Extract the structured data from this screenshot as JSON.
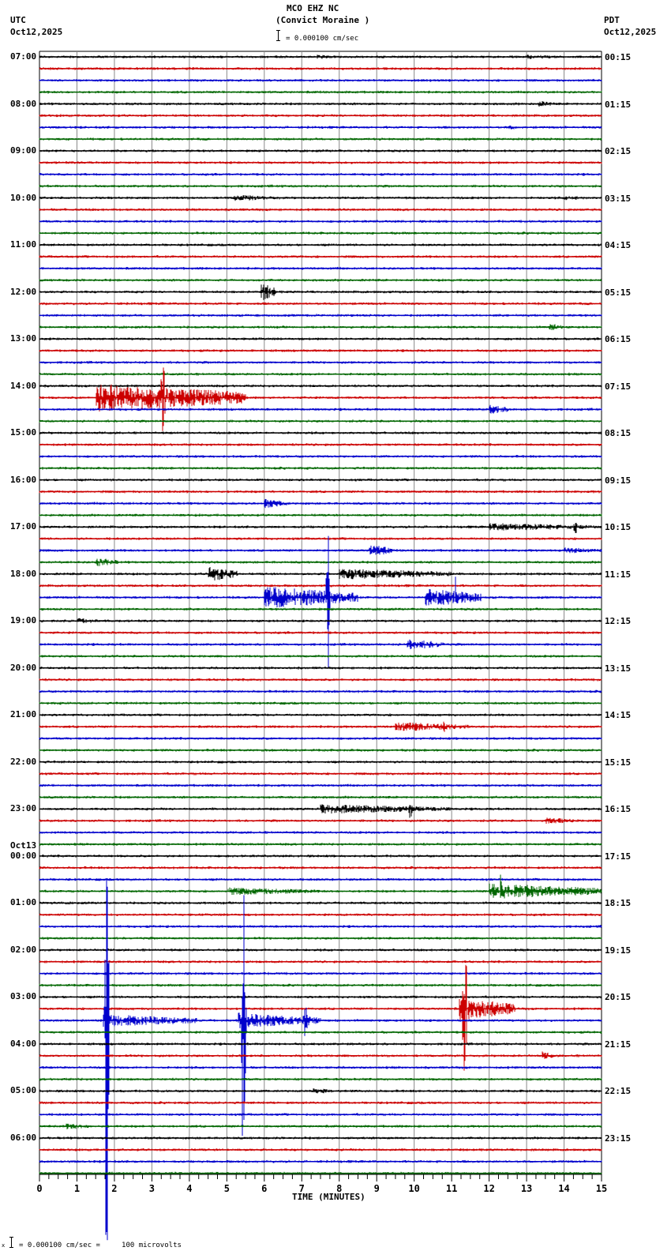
{
  "header": {
    "station": "MCO EHZ NC",
    "location": "(Convict Moraine )",
    "left_tz": "UTC",
    "left_date": "Oct12,2025",
    "right_tz": "PDT",
    "right_date": "Oct12,2025",
    "scale": "= 0.000100 cm/sec"
  },
  "footer": {
    "scale_note": "= 0.000100 cm/sec =     100 microvolts",
    "prefix": "x"
  },
  "chart_data": {
    "type": "line",
    "title": "MCO EHZ NC (Convict Moraine ) helicorder",
    "xlabel": "TIME (MINUTES)",
    "ylabel": "",
    "xlim": [
      0,
      15
    ],
    "x_ticks": [
      "0",
      "1",
      "2",
      "3",
      "4",
      "5",
      "6",
      "7",
      "8",
      "9",
      "10",
      "11",
      "12",
      "13",
      "14",
      "15"
    ],
    "traces_per_hour": 4,
    "trace_minutes": 15,
    "trace_colors": [
      "#000000",
      "#cc0000",
      "#0000cc",
      "#006600"
    ],
    "grid": true,
    "left_labels": [
      {
        "row": 0,
        "text": "07:00"
      },
      {
        "row": 4,
        "text": "08:00"
      },
      {
        "row": 8,
        "text": "09:00"
      },
      {
        "row": 12,
        "text": "10:00"
      },
      {
        "row": 16,
        "text": "11:00"
      },
      {
        "row": 20,
        "text": "12:00"
      },
      {
        "row": 24,
        "text": "13:00"
      },
      {
        "row": 28,
        "text": "14:00"
      },
      {
        "row": 32,
        "text": "15:00"
      },
      {
        "row": 36,
        "text": "16:00"
      },
      {
        "row": 40,
        "text": "17:00"
      },
      {
        "row": 44,
        "text": "18:00"
      },
      {
        "row": 48,
        "text": "19:00"
      },
      {
        "row": 52,
        "text": "20:00"
      },
      {
        "row": 56,
        "text": "21:00"
      },
      {
        "row": 60,
        "text": "22:00"
      },
      {
        "row": 64,
        "text": "23:00"
      },
      {
        "row": 68,
        "text": "00:00",
        "date": "Oct13"
      },
      {
        "row": 72,
        "text": "01:00"
      },
      {
        "row": 76,
        "text": "02:00"
      },
      {
        "row": 80,
        "text": "03:00"
      },
      {
        "row": 84,
        "text": "04:00"
      },
      {
        "row": 88,
        "text": "05:00"
      },
      {
        "row": 92,
        "text": "06:00"
      }
    ],
    "right_labels": [
      {
        "row": 0,
        "text": "00:15"
      },
      {
        "row": 4,
        "text": "01:15"
      },
      {
        "row": 8,
        "text": "02:15"
      },
      {
        "row": 12,
        "text": "03:15"
      },
      {
        "row": 16,
        "text": "04:15"
      },
      {
        "row": 20,
        "text": "05:15"
      },
      {
        "row": 24,
        "text": "06:15"
      },
      {
        "row": 28,
        "text": "07:15"
      },
      {
        "row": 32,
        "text": "08:15"
      },
      {
        "row": 36,
        "text": "09:15"
      },
      {
        "row": 40,
        "text": "10:15"
      },
      {
        "row": 44,
        "text": "11:15"
      },
      {
        "row": 48,
        "text": "12:15"
      },
      {
        "row": 52,
        "text": "13:15"
      },
      {
        "row": 56,
        "text": "14:15"
      },
      {
        "row": 60,
        "text": "15:15"
      },
      {
        "row": 64,
        "text": "16:15"
      },
      {
        "row": 68,
        "text": "17:15"
      },
      {
        "row": 72,
        "text": "18:15"
      },
      {
        "row": 76,
        "text": "19:15"
      },
      {
        "row": 80,
        "text": "20:15"
      },
      {
        "row": 84,
        "text": "21:15"
      },
      {
        "row": 88,
        "text": "22:15"
      },
      {
        "row": 92,
        "text": "23:15"
      }
    ],
    "events": [
      {
        "row": 0,
        "minute": 7.4,
        "dur": 0.6,
        "amp": 3
      },
      {
        "row": 0,
        "minute": 13.0,
        "dur": 1.0,
        "amp": 3
      },
      {
        "row": 4,
        "minute": 13.3,
        "dur": 0.5,
        "amp": 4
      },
      {
        "row": 6,
        "minute": 12.5,
        "dur": 0.5,
        "amp": 3
      },
      {
        "row": 12,
        "minute": 5.2,
        "dur": 1.2,
        "amp": 4
      },
      {
        "row": 12,
        "minute": 14.0,
        "dur": 0.8,
        "amp": 3
      },
      {
        "row": 20,
        "minute": 5.9,
        "dur": 0.4,
        "amp": 12
      },
      {
        "row": 23,
        "minute": 13.6,
        "dur": 0.4,
        "amp": 5
      },
      {
        "row": 29,
        "minute": 1.5,
        "dur": 4.0,
        "amp": 18,
        "peak": 3.3,
        "peakamp": 110
      },
      {
        "row": 30,
        "minute": 12.0,
        "dur": 0.6,
        "amp": 6
      },
      {
        "row": 38,
        "minute": 6.0,
        "dur": 0.6,
        "amp": 6
      },
      {
        "row": 40,
        "minute": 12.0,
        "dur": 3.0,
        "amp": 5,
        "peak": 14.3,
        "peakamp": 14
      },
      {
        "row": 42,
        "minute": 8.8,
        "dur": 0.6,
        "amp": 8
      },
      {
        "row": 42,
        "minute": 14.0,
        "dur": 1.0,
        "amp": 4
      },
      {
        "row": 43,
        "minute": 1.5,
        "dur": 0.6,
        "amp": 6
      },
      {
        "row": 44,
        "minute": 4.5,
        "dur": 0.8,
        "amp": 10
      },
      {
        "row": 44,
        "minute": 8.0,
        "dur": 3.0,
        "amp": 7
      },
      {
        "row": 46,
        "minute": 6.0,
        "dur": 2.5,
        "amp": 14,
        "peak": 7.7,
        "peakamp": 120
      },
      {
        "row": 46,
        "minute": 10.3,
        "dur": 1.5,
        "amp": 12,
        "peak": 11.1,
        "peakamp": 30
      },
      {
        "row": 48,
        "minute": 1.0,
        "dur": 0.6,
        "amp": 4
      },
      {
        "row": 50,
        "minute": 9.8,
        "dur": 1.0,
        "amp": 7
      },
      {
        "row": 57,
        "minute": 9.5,
        "dur": 2.0,
        "amp": 6,
        "peak": 10.8,
        "peakamp": 10
      },
      {
        "row": 64,
        "minute": 7.5,
        "dur": 3.5,
        "amp": 6,
        "peak": 9.9,
        "peakamp": 16
      },
      {
        "row": 65,
        "minute": 13.5,
        "dur": 1.0,
        "amp": 4
      },
      {
        "row": 71,
        "minute": 12.0,
        "dur": 3.0,
        "amp": 10,
        "peak": 12.3,
        "peakamp": 30
      },
      {
        "row": 71,
        "minute": 5.0,
        "dur": 2.5,
        "amp": 5
      },
      {
        "row": 81,
        "minute": 11.2,
        "dur": 1.5,
        "amp": 15,
        "peak": 11.35,
        "peakamp": 160
      },
      {
        "row": 82,
        "minute": 1.7,
        "dur": 2.5,
        "amp": 8,
        "peak": 1.8,
        "peakamp": 450
      },
      {
        "row": 82,
        "minute": 5.3,
        "dur": 1.8,
        "amp": 10,
        "peak": 5.45,
        "peakamp": 320
      },
      {
        "row": 82,
        "minute": 7.0,
        "dur": 0.5,
        "amp": 8,
        "peak": 7.1,
        "peakamp": 30
      },
      {
        "row": 85,
        "minute": 13.4,
        "dur": 0.3,
        "amp": 6
      },
      {
        "row": 88,
        "minute": 7.3,
        "dur": 0.6,
        "amp": 4
      },
      {
        "row": 91,
        "minute": 0.7,
        "dur": 0.8,
        "amp": 4
      }
    ]
  }
}
